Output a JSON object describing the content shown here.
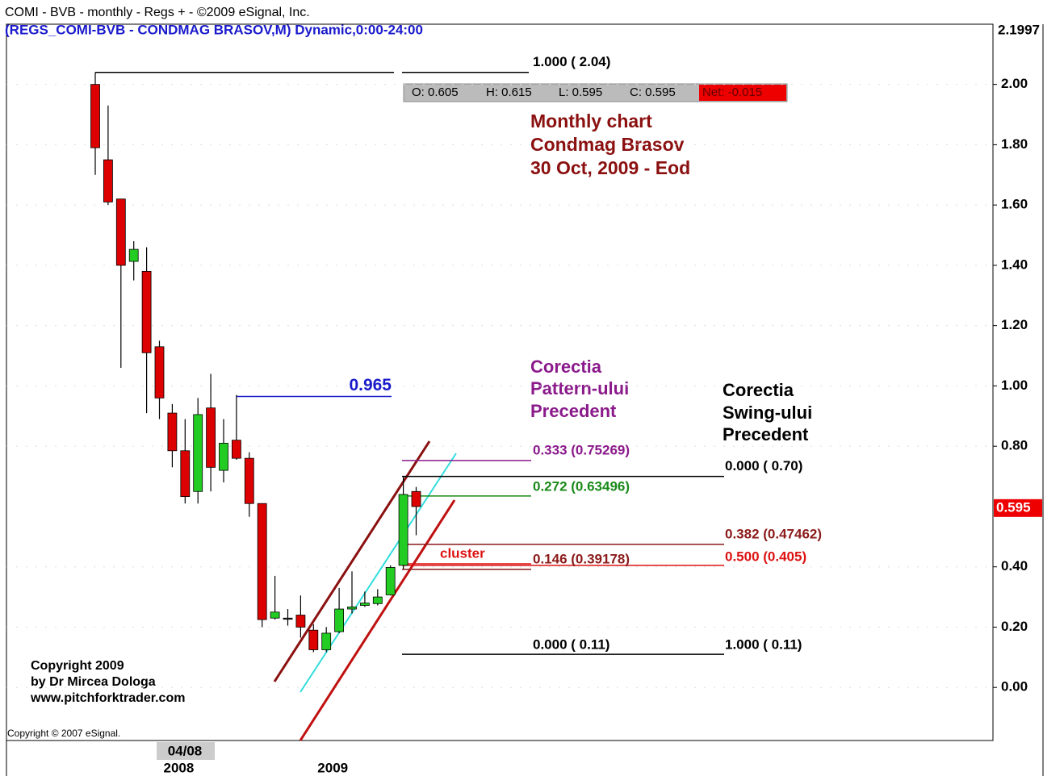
{
  "chart_data": {
    "type": "candlestick",
    "title": "COMI - BVB - monthly - Regs + - ©2009 eSignal, Inc.",
    "subtitle": "(REGS_COMI-BVB - CONDMAG BRASOV,M) Dynamic,0:00-24:00",
    "categories": [
      null,
      null,
      null,
      null,
      null,
      null,
      "2008",
      null,
      null,
      null,
      null,
      null,
      null,
      null,
      null,
      null,
      null,
      null,
      "2009",
      null,
      null,
      null,
      null,
      null,
      null,
      null
    ],
    "cursor_label": "04/08",
    "series": [
      {
        "open": [
          2.0,
          1.75,
          1.62,
          1.413,
          1.38,
          1.13,
          0.91,
          0.785,
          0.65,
          0.927,
          0.72,
          0.82,
          0.76,
          0.61,
          0.23,
          0.23,
          0.24,
          0.19,
          0.125,
          0.185,
          0.26,
          0.272,
          0.278,
          0.307,
          0.405,
          0.65
        ],
        "high": [
          2.04,
          1.93,
          1.62,
          1.48,
          1.46,
          1.15,
          0.94,
          0.89,
          0.96,
          1.04,
          0.89,
          0.97,
          0.78,
          0.61,
          0.37,
          0.26,
          0.305,
          0.21,
          0.2,
          0.33,
          0.385,
          0.318,
          0.326,
          0.405,
          0.7,
          0.665
        ],
        "low": [
          1.7,
          1.6,
          1.06,
          1.35,
          0.91,
          0.89,
          0.73,
          0.61,
          0.61,
          0.65,
          0.68,
          0.755,
          0.566,
          0.2,
          0.225,
          0.205,
          0.165,
          0.117,
          0.117,
          0.18,
          0.245,
          0.267,
          0.272,
          0.305,
          0.392,
          0.505
        ],
        "close": [
          1.79,
          1.61,
          1.4,
          1.453,
          1.11,
          0.96,
          0.785,
          0.633,
          0.905,
          0.73,
          0.81,
          0.76,
          0.61,
          0.225,
          0.25,
          0.23,
          0.2,
          0.125,
          0.18,
          0.26,
          0.267,
          0.28,
          0.3,
          0.398,
          0.64,
          0.6
        ],
        "up_color": "#22cc22",
        "down_color": "#dd0000"
      }
    ],
    "ylim": [
      -0.176,
      2.1997
    ],
    "yticks": [
      {
        "value": 0,
        "label": "0.00"
      },
      {
        "value": 0.2,
        "label": "0.20"
      },
      {
        "value": 0.4,
        "label": "0.40"
      },
      {
        "value": 0.8,
        "label": "0.80"
      },
      {
        "value": 1,
        "label": "1.00"
      },
      {
        "value": 1.2,
        "label": "1.20"
      },
      {
        "value": 1.4,
        "label": "1.40"
      },
      {
        "value": 1.6,
        "label": "1.60"
      },
      {
        "value": 1.8,
        "label": "1.80"
      },
      {
        "value": 2,
        "label": "2.00"
      }
    ],
    "grid": true,
    "last_price": {
      "value": 0.595,
      "label": "0.595"
    },
    "ohlc_box": [
      "O: 0.605",
      "H: 0.615",
      "L: 0.595",
      "C: 0.595",
      "Net: -0.015"
    ],
    "notes": [
      "Monthly chart",
      "Condmag Brasov",
      "30 Oct, 2009 - Eod"
    ],
    "pattern_note": [
      "Corectia",
      "Pattern-ului",
      "Precedent"
    ],
    "swing_note": [
      "Corectia",
      "Swing-ului",
      "Precedent"
    ],
    "cluster_label": "cluster",
    "levels": [
      {
        "label": "1.000 ( 2.04)",
        "value": 2.04,
        "color": "#000000"
      },
      {
        "label": "0.965",
        "value": 0.965,
        "color": "#1a1acc"
      },
      {
        "label": "0.333 (0.75269)",
        "value": 0.75269,
        "color": "#8b1a8b"
      },
      {
        "label": "0.272 (0.63496)",
        "value": 0.63496,
        "color": "#1a8a1a"
      },
      {
        "label": "0.000 ( 0.70)",
        "value": 0.7,
        "color": "#000000"
      },
      {
        "label": "0.382 (0.47462)",
        "value": 0.47462,
        "color": "#8b1a1a"
      },
      {
        "label": "0.500 (0.405)",
        "value": 0.405,
        "color": "#dd1111"
      },
      {
        "label": "0.146 (0.39178)",
        "value": 0.39178,
        "color": "#8b1a1a"
      },
      {
        "label": "0.000 ( 0.11)",
        "value": 0.11,
        "color": "#000000"
      },
      {
        "label": "1.000 ( 0.11)",
        "value": 0.11,
        "color": "#000000"
      }
    ],
    "copyright": [
      "Copyright 2009",
      "by Dr Mircea Dologa",
      "www.pitchforktrader.com"
    ],
    "esignal_copyright": "Copyright © 2007 eSignal."
  }
}
